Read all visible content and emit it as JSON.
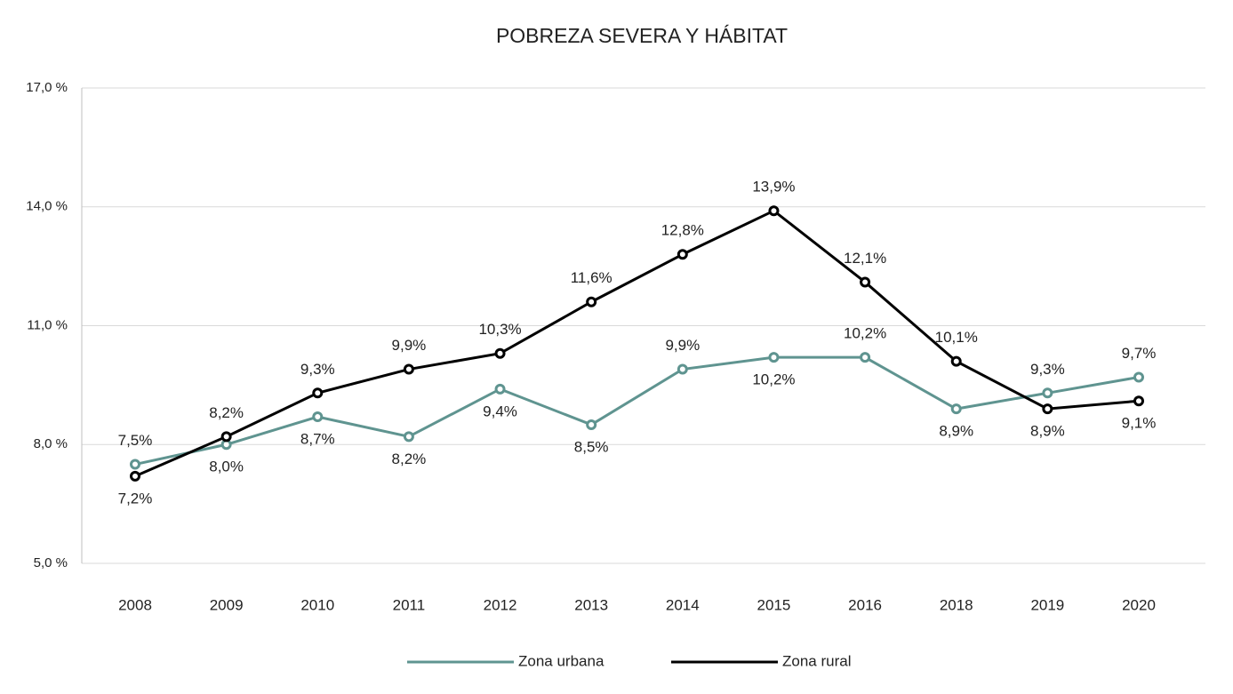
{
  "chart_data": {
    "type": "line",
    "title": "POBREZA SEVERA Y HÁBITAT",
    "categories": [
      "2008",
      "2009",
      "2010",
      "2011",
      "2012",
      "2013",
      "2014",
      "2015",
      "2016",
      "2018",
      "2019",
      "2020"
    ],
    "series": [
      {
        "name": "Zona urbana",
        "color": "#5f9490",
        "values": [
          7.5,
          8.0,
          8.7,
          8.2,
          9.4,
          8.5,
          9.9,
          10.2,
          10.2,
          8.9,
          9.3,
          9.7
        ],
        "value_labels": [
          "7,5%",
          "8,0%",
          "8,7%",
          "8,2%",
          "9,4%",
          "8,5%",
          "9,9%",
          "10,2%",
          "10,2%",
          "8,9%",
          "9,3%",
          "9,7%"
        ]
      },
      {
        "name": "Zona rural",
        "color": "#000000",
        "values": [
          7.2,
          8.2,
          9.3,
          9.9,
          10.3,
          11.6,
          12.8,
          13.9,
          12.1,
          10.1,
          8.9,
          9.1
        ],
        "value_labels": [
          "7,2%",
          "8,2%",
          "9,3%",
          "9,9%",
          "10,3%",
          "11,6%",
          "12,8%",
          "13,9%",
          "12,1%",
          "10,1%",
          "8,9%",
          "9,1%"
        ]
      }
    ],
    "ylim": [
      5,
      17
    ],
    "yticks": [
      {
        "value": 5,
        "label": "5,0 %"
      },
      {
        "value": 8,
        "label": "8,0 %"
      },
      {
        "value": 11,
        "label": "11,0 %"
      },
      {
        "value": 14,
        "label": "14,0 %"
      },
      {
        "value": 17,
        "label": "17,0 %"
      }
    ],
    "grid": true
  }
}
